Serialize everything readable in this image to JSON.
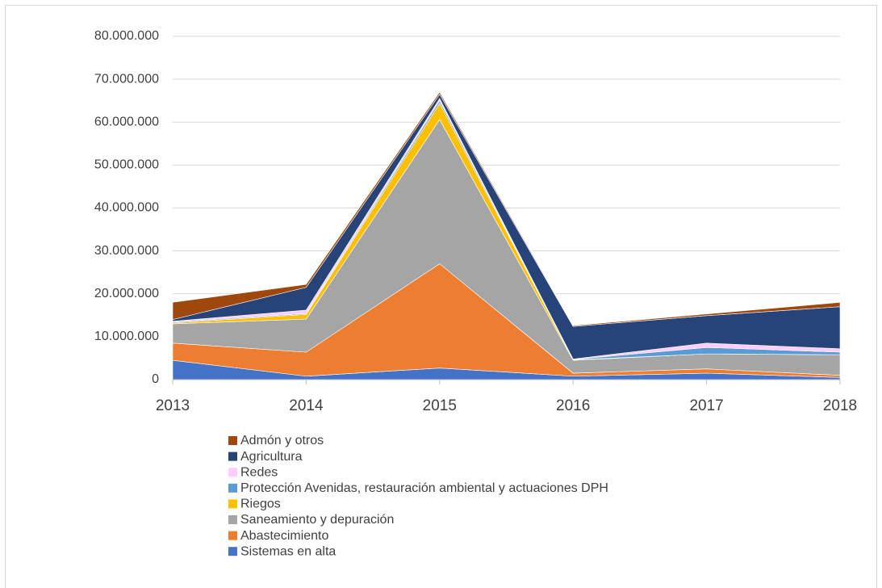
{
  "chart_data": {
    "type": "stacked_area",
    "categories": [
      "2013",
      "2014",
      "2015",
      "2016",
      "2017",
      "2018"
    ],
    "series": [
      {
        "name": "Sistemas en alta",
        "color": "#4472c4",
        "values": [
          4500000,
          800000,
          2700000,
          800000,
          1500000,
          500000
        ]
      },
      {
        "name": "Abastecimiento",
        "color": "#ed7d31",
        "values": [
          4000000,
          5600000,
          24300000,
          700000,
          1000000,
          500000
        ]
      },
      {
        "name": "Saneamiento y depuración",
        "color": "#a5a5a5",
        "values": [
          4500000,
          7700000,
          33600000,
          3000000,
          3500000,
          4800000
        ]
      },
      {
        "name": "Riegos",
        "color": "#ffc000",
        "values": [
          200000,
          1100000,
          3800000,
          100000,
          0,
          0
        ]
      },
      {
        "name": "Protección Avenidas, restauración ambiental y actuaciones DPH",
        "color": "#5b9bd5",
        "values": [
          200000,
          200000,
          600000,
          100000,
          1500000,
          600000
        ]
      },
      {
        "name": "Redes",
        "color": "#ffccff",
        "values": [
          200000,
          800000,
          500000,
          100000,
          1000000,
          800000
        ]
      },
      {
        "name": "Agricultura",
        "color": "#264478",
        "values": [
          400000,
          5300000,
          1000000,
          7600000,
          6400000,
          9800000
        ]
      },
      {
        "name": "Admón y otros",
        "color": "#9e480e",
        "values": [
          4000000,
          700000,
          500000,
          200000,
          400000,
          1000000
        ]
      }
    ],
    "ylim": [
      0,
      80000000
    ],
    "yticks": [
      0,
      {
        "value": 10000000,
        "label": "10.000.000"
      },
      {
        "value": 20000000,
        "label": "20.000.000"
      },
      {
        "value": 30000000,
        "label": "30.000.000"
      },
      {
        "value": 40000000,
        "label": "40.000.000"
      },
      {
        "value": 50000000,
        "label": "50.000.000"
      },
      {
        "value": 60000000,
        "label": "60.000.000"
      },
      {
        "value": 70000000,
        "label": "70.000.000"
      },
      {
        "value": 80000000,
        "label": "80.000.000"
      }
    ],
    "grid": true
  }
}
